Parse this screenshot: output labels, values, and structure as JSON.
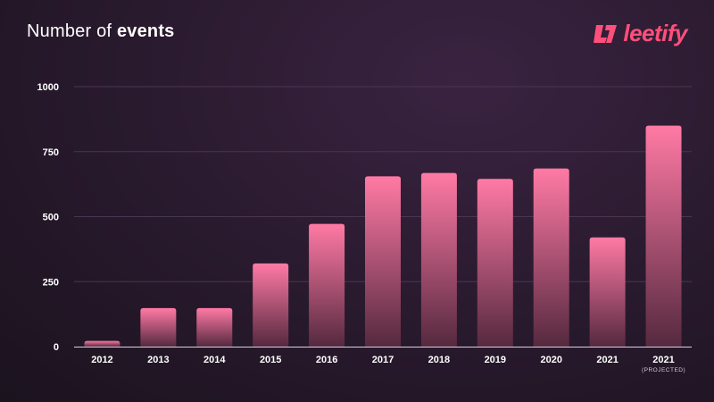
{
  "header": {
    "title_regular": "Number of",
    "title_bold": "events",
    "brand_name": "leetify",
    "brand_icon": "leetify-logo-icon"
  },
  "colors": {
    "background": "#2b1b30",
    "bar_top": "#ff7aa5",
    "bar_bottom": "#55293f",
    "brand": "#ff4f7b",
    "grid": "#4a3550"
  },
  "chart_data": {
    "type": "bar",
    "title": "Number of events",
    "xlabel": "",
    "ylabel": "",
    "ylim": [
      0,
      1000
    ],
    "yticks": [
      "0",
      "250",
      "500",
      "750",
      "1000"
    ],
    "grid": true,
    "categories": [
      {
        "label": "2012",
        "sub": ""
      },
      {
        "label": "2013",
        "sub": ""
      },
      {
        "label": "2014",
        "sub": ""
      },
      {
        "label": "2015",
        "sub": ""
      },
      {
        "label": "2016",
        "sub": ""
      },
      {
        "label": "2017",
        "sub": ""
      },
      {
        "label": "2018",
        "sub": ""
      },
      {
        "label": "2019",
        "sub": ""
      },
      {
        "label": "2020",
        "sub": ""
      },
      {
        "label": "2021",
        "sub": ""
      },
      {
        "label": "2021",
        "sub": "(PROJECTED)"
      }
    ],
    "values": [
      22,
      148,
      148,
      320,
      472,
      655,
      668,
      645,
      685,
      420,
      850
    ]
  }
}
